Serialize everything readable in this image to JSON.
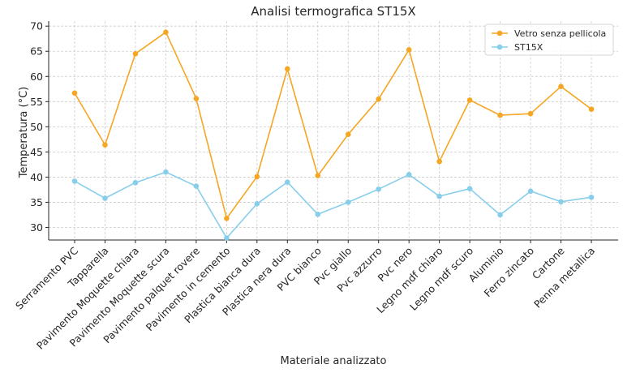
{
  "chart_data": {
    "type": "line",
    "title": "Analisi termografica ST15X",
    "xlabel": "Materiale analizzato",
    "ylabel": "Temperatura (°C)",
    "ylim": [
      27.5,
      71
    ],
    "yticks": [
      30,
      35,
      40,
      45,
      50,
      55,
      60,
      65,
      70
    ],
    "grid": true,
    "legend_position": "top-right",
    "categories": [
      "Serramento PVC",
      "Tapparella",
      "Pavimento Moquette chiara",
      "Pavimento Moquette scura",
      "Pavimento palquet rovere",
      "Pavimento in cemento",
      "Plastica bianca dura",
      "Plastica nera dura",
      "PVC bianco",
      "Pvc giallo",
      "Pvc azzurro",
      "Pvc nero",
      "Legno mdf chiaro",
      "Legno mdf scuro",
      "Aluminio",
      "Ferro zincato",
      "Cartone",
      "Penna metallica"
    ],
    "series": [
      {
        "name": "Vetro senza pellicola",
        "color": "#f5a623",
        "values": [
          56.7,
          46.4,
          64.5,
          68.8,
          55.6,
          31.8,
          40.1,
          61.5,
          40.3,
          48.5,
          55.5,
          65.3,
          43.1,
          55.3,
          52.3,
          52.6,
          58.0,
          53.5
        ]
      },
      {
        "name": "ST15X",
        "color": "#87ceeb",
        "values": [
          39.2,
          35.8,
          38.9,
          41.0,
          38.2,
          27.9,
          34.7,
          39.0,
          32.6,
          35.0,
          37.6,
          40.5,
          36.2,
          37.7,
          32.5,
          37.2,
          35.1,
          36.0
        ]
      }
    ]
  }
}
